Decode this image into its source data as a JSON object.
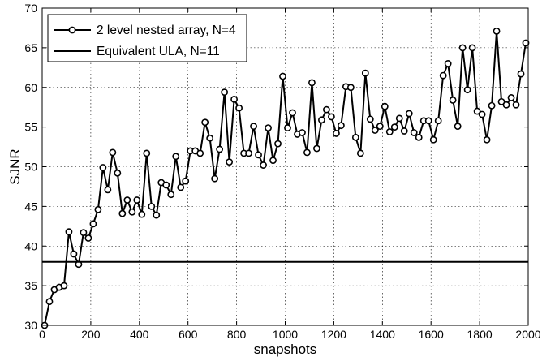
{
  "chart_data": {
    "type": "line",
    "xlabel": "snapshots",
    "ylabel": "SJNR",
    "xlim": [
      0,
      2000
    ],
    "ylim": [
      30,
      70
    ],
    "xticks": [
      0,
      200,
      400,
      600,
      800,
      1000,
      1200,
      1400,
      1600,
      1800,
      2000
    ],
    "yticks": [
      30,
      35,
      40,
      45,
      50,
      55,
      60,
      65,
      70
    ],
    "grid": true,
    "legend_position": "top-left",
    "series": [
      {
        "name": "2 level nested array, N=4",
        "marker": "circle",
        "color": "#000000",
        "x": [
          10,
          30,
          50,
          70,
          90,
          110,
          130,
          150,
          170,
          190,
          210,
          230,
          250,
          270,
          290,
          310,
          330,
          350,
          370,
          390,
          410,
          430,
          450,
          470,
          490,
          510,
          530,
          550,
          570,
          590,
          610,
          630,
          650,
          670,
          690,
          710,
          730,
          750,
          770,
          790,
          810,
          830,
          850,
          870,
          890,
          910,
          930,
          950,
          970,
          990,
          1010,
          1030,
          1050,
          1070,
          1090,
          1110,
          1130,
          1150,
          1170,
          1190,
          1210,
          1230,
          1250,
          1270,
          1290,
          1310,
          1330,
          1350,
          1370,
          1390,
          1410,
          1430,
          1450,
          1470,
          1490,
          1510,
          1530,
          1550,
          1570,
          1590,
          1610,
          1630,
          1650,
          1670,
          1690,
          1710,
          1730,
          1750,
          1770,
          1790,
          1810,
          1830,
          1850,
          1870,
          1890,
          1910,
          1930,
          1950,
          1970,
          1990
        ],
        "y": [
          30.0,
          33.0,
          34.5,
          34.8,
          35.0,
          41.8,
          39.0,
          37.7,
          41.7,
          41.0,
          42.8,
          44.6,
          49.9,
          47.1,
          51.8,
          49.2,
          44.1,
          45.8,
          44.3,
          45.8,
          44.0,
          51.7,
          45.0,
          43.9,
          48.0,
          47.7,
          46.5,
          51.3,
          47.4,
          48.2,
          52.0,
          52.0,
          51.7,
          55.6,
          53.6,
          48.5,
          52.2,
          59.4,
          50.6,
          58.5,
          57.4,
          51.7,
          51.7,
          55.1,
          51.5,
          50.2,
          54.9,
          50.8,
          52.9,
          61.4,
          54.9,
          56.8,
          54.1,
          54.3,
          51.8,
          60.6,
          52.3,
          55.9,
          57.2,
          56.3,
          54.2,
          55.2,
          60.1,
          60.0,
          53.7,
          51.7,
          61.8,
          56.0,
          54.6,
          55.1,
          57.6,
          54.4,
          55.0,
          56.1,
          54.5,
          56.7,
          54.3,
          53.7,
          55.8,
          55.8,
          53.4,
          55.8,
          61.5,
          63.0,
          58.4,
          55.1,
          65.0,
          59.7,
          65.0,
          57.0,
          56.6,
          53.4,
          57.7,
          67.1,
          58.2,
          57.8,
          58.7,
          57.8,
          61.7,
          65.6
        ]
      },
      {
        "name": "Equivalent ULA, N=11",
        "marker": "none",
        "color": "#000000",
        "x": [
          0,
          2000
        ],
        "y": [
          38,
          38
        ]
      }
    ]
  }
}
